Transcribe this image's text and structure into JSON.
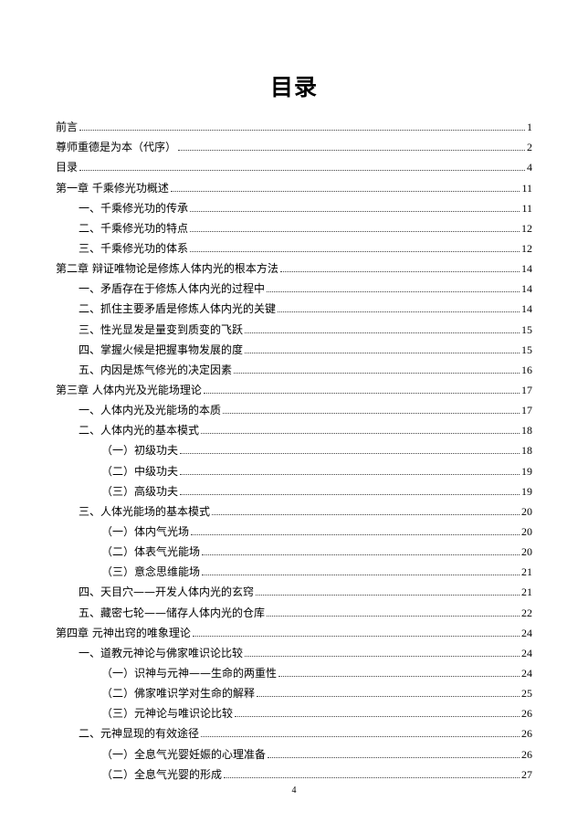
{
  "title": "目录",
  "entries": [
    {
      "level": 1,
      "label": "前言",
      "page": "1"
    },
    {
      "level": 1,
      "label": "尊师重德是为本（代序）",
      "page": "2"
    },
    {
      "level": 1,
      "label": "目录",
      "page": "4"
    },
    {
      "level": 1,
      "label": "第一章  千乘修光功概述",
      "page": "11"
    },
    {
      "level": 2,
      "label": "一、千乘修光功的传承",
      "page": "11"
    },
    {
      "level": 2,
      "label": "二、千乘修光功的特点",
      "page": "12"
    },
    {
      "level": 2,
      "label": "三、千乘修光功的体系",
      "page": "12"
    },
    {
      "level": 1,
      "label": "第二章  辩证唯物论是修炼人体内光的根本方法",
      "page": "14"
    },
    {
      "level": 2,
      "label": "一、矛盾存在于修炼人体内光的过程中",
      "page": "14"
    },
    {
      "level": 2,
      "label": "二、抓住主要矛盾是修炼人体内光的关键",
      "page": "14"
    },
    {
      "level": 2,
      "label": "三、性光显发是量变到质变的飞跃",
      "page": "15"
    },
    {
      "level": 2,
      "label": "四、掌握火候是把握事物发展的度",
      "page": "15"
    },
    {
      "level": 2,
      "label": "五、内因是炼气修光的决定因素",
      "page": "16"
    },
    {
      "level": 1,
      "label": "第三章  人体内光及光能场理论",
      "page": "17"
    },
    {
      "level": 2,
      "label": "一、人体内光及光能场的本质",
      "page": "17"
    },
    {
      "level": 2,
      "label": "二、人体内光的基本模式",
      "page": "18"
    },
    {
      "level": 3,
      "label": "（一）初级功夫",
      "page": "18"
    },
    {
      "level": 3,
      "label": "（二）中级功夫",
      "page": "19"
    },
    {
      "level": 3,
      "label": "（三）高级功夫",
      "page": "19"
    },
    {
      "level": 2,
      "label": "三、人体光能场的基本模式",
      "page": "20"
    },
    {
      "level": 3,
      "label": "（一）体内气光场",
      "page": "20"
    },
    {
      "level": 3,
      "label": "（二）体表气光能场",
      "page": "20"
    },
    {
      "level": 3,
      "label": "（三）意念思维能场",
      "page": "21"
    },
    {
      "level": 2,
      "label": "四、天目穴——开发人体内光的玄窍",
      "page": "21"
    },
    {
      "level": 2,
      "label": "五、藏密七轮——储存人体内光的仓库",
      "page": "22"
    },
    {
      "level": 1,
      "label": "第四章  元神出窍的唯象理论",
      "page": "24"
    },
    {
      "level": 2,
      "label": "一、道教元神论与佛家唯识论比较",
      "page": "24"
    },
    {
      "level": 3,
      "label": "（一）识神与元神——生命的两重性",
      "page": "24"
    },
    {
      "level": 3,
      "label": "（二）佛家唯识学对生命的解释",
      "page": "25"
    },
    {
      "level": 3,
      "label": "（三）元神论与唯识论比较",
      "page": "26"
    },
    {
      "level": 2,
      "label": "二、元神显现的有效途径",
      "page": "26"
    },
    {
      "level": 3,
      "label": "（一）全息气光婴妊娠的心理准备",
      "page": "26"
    },
    {
      "level": 3,
      "label": "（二）全息气光婴的形成",
      "page": "27"
    }
  ],
  "page_number": "4"
}
